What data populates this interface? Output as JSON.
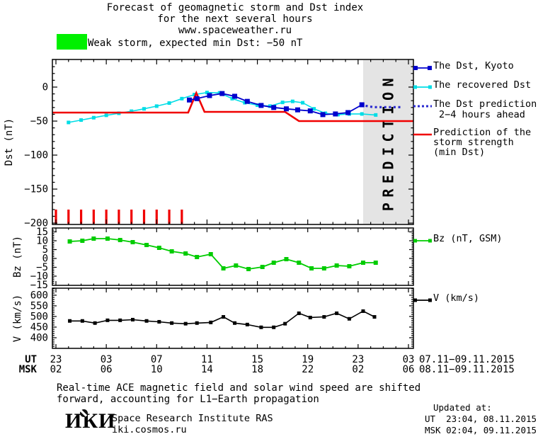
{
  "title": {
    "line1": "Forecast of geomagnetic storm and Dst index",
    "line2": "for the next several hours",
    "line3": "www.spaceweather.ru"
  },
  "banner": {
    "level_color": "#00f000",
    "text": "Weak storm, expected min Dst: −50 nT"
  },
  "legend_dst": [
    {
      "label": "The Dst, Kyoto",
      "color": "#0000cd",
      "style": "line-squares",
      "marker": 6
    },
    {
      "label": "The recovered Dst",
      "color": "#00dde6",
      "style": "line-squares",
      "marker": 5
    },
    {
      "label": "The Dst prediction",
      "label2": "2−4 hours ahead",
      "color": "#2a2ad0",
      "style": "dotted"
    },
    {
      "label": "Prediction of the",
      "label2": "storm strength",
      "label3": "(min Dst)",
      "color": "#f00000",
      "style": "line"
    }
  ],
  "legend_bz": {
    "label": "Bz (nT, GSM)",
    "color": "#00cc00",
    "style": "line-squares",
    "marker": 5
  },
  "legend_v": {
    "label": "V (km/s)",
    "color": "#000000",
    "style": "line-squares",
    "marker": 5
  },
  "xaxis": {
    "major_t": [
      0,
      4,
      8,
      12,
      16,
      20,
      24,
      28
    ],
    "unit_rows": [
      {
        "name": "UT",
        "labels": [
          "23",
          "03",
          "07",
          "11",
          "15",
          "19",
          "23",
          "03"
        ],
        "date_range": "07.11−09.11.2015"
      },
      {
        "name": "MSK",
        "labels": [
          "02",
          "06",
          "10",
          "14",
          "18",
          "22",
          "02",
          "06"
        ],
        "date_range": "08.11−09.11.2015"
      }
    ],
    "x_unit": "hours since 23:00 UT 07.11.2015, major ticks every 4 h, minor every 1 h"
  },
  "chart_data": [
    {
      "type": "line",
      "name": "dst-panel",
      "ylabel": "Dst (nT)",
      "ylim": [
        40.6,
        -202
      ],
      "yticks": [
        {
          "v": 0,
          "label": "0"
        },
        {
          "v": -50,
          "label": "−50"
        },
        {
          "v": -100,
          "label": "−100"
        },
        {
          "v": -150,
          "label": "−150"
        },
        {
          "v": -200,
          "label": "−200"
        }
      ],
      "prediction_band": {
        "t_start": 24.4,
        "t_end": 28.4,
        "label": "PREDICTION",
        "fill": "#e4e4e4",
        "text_color": "#c9c9c9"
      },
      "event_bars": {
        "color": "#f00000",
        "t": [
          0,
          1,
          2,
          3,
          4,
          5,
          6,
          7,
          8,
          9,
          10
        ]
      },
      "series": [
        {
          "name": "recovered-dst",
          "color": "#00dde6",
          "width": 1.6,
          "marker": 5,
          "points": [
            [
              1,
              -52
            ],
            [
              2,
              -48.5
            ],
            [
              3,
              -45
            ],
            [
              4,
              -41.5
            ],
            [
              5,
              -38.5
            ],
            [
              6,
              -35.5
            ],
            [
              7,
              -32
            ],
            [
              8,
              -28
            ],
            [
              9,
              -23.5
            ],
            [
              10,
              -17
            ],
            [
              11,
              -11
            ],
            [
              12,
              -8
            ],
            [
              13,
              -8.5
            ],
            [
              14,
              -17
            ],
            [
              15,
              -23
            ],
            [
              16,
              -26.5
            ],
            [
              17,
              -28
            ],
            [
              18,
              -22.5
            ],
            [
              18.8,
              -21
            ],
            [
              19.6,
              -23
            ],
            [
              20.5,
              -32
            ],
            [
              21.4,
              -38.5
            ],
            [
              22.4,
              -40.5
            ],
            [
              23.3,
              -39.5
            ],
            [
              24.3,
              -39.5
            ],
            [
              25.4,
              -41
            ]
          ]
        },
        {
          "name": "storm-prediction",
          "color": "#f00000",
          "width": 2.6,
          "points": [
            [
              -0.28,
              -37.5
            ],
            [
              10.5,
              -37.5
            ],
            [
              11.15,
              -8.5
            ],
            [
              11.8,
              -36.5
            ],
            [
              18.2,
              -36.5
            ],
            [
              19.3,
              -50
            ],
            [
              28.4,
              -50
            ]
          ]
        },
        {
          "name": "dst-kyoto",
          "color": "#0000cd",
          "width": 1.8,
          "marker": 7,
          "points": [
            [
              10.6,
              -19
            ],
            [
              11.2,
              -17
            ],
            [
              12.2,
              -12.5
            ],
            [
              13.2,
              -9.5
            ],
            [
              14.2,
              -13.5
            ],
            [
              15.2,
              -21
            ],
            [
              16.3,
              -27
            ],
            [
              17.3,
              -30
            ],
            [
              18.3,
              -32
            ],
            [
              19.2,
              -33.5
            ],
            [
              20.2,
              -35
            ],
            [
              21.2,
              -40.5
            ],
            [
              22.2,
              -39.5
            ],
            [
              23.2,
              -37.5
            ],
            [
              24.3,
              -26
            ]
          ]
        },
        {
          "name": "dst-prediction",
          "color": "#2a2ad0",
          "width": 3.2,
          "dotted": true,
          "points": [
            [
              24.6,
              -27.5
            ],
            [
              25.2,
              -29.5
            ],
            [
              27.4,
              -29.5
            ]
          ]
        }
      ]
    },
    {
      "type": "line",
      "name": "bz-panel",
      "ylabel": "Bz (nT)",
      "ylim": [
        17.2,
        -15.2
      ],
      "yticks": [
        {
          "v": 15,
          "label": "15"
        },
        {
          "v": 10,
          "label": "10"
        },
        {
          "v": 5,
          "label": "5"
        },
        {
          "v": 0,
          "label": "0"
        },
        {
          "v": -5,
          "label": "−5"
        },
        {
          "v": -10,
          "label": "−10"
        },
        {
          "v": -15,
          "label": "−15"
        }
      ],
      "series": [
        {
          "name": "bz-gsm",
          "color": "#00cc00",
          "width": 1.8,
          "marker": 6,
          "points": [
            [
              1.1,
              9.6
            ],
            [
              2.1,
              10
            ],
            [
              3,
              11.2
            ],
            [
              4.1,
              11.2
            ],
            [
              5.1,
              10.4
            ],
            [
              6.1,
              9.2
            ],
            [
              7.2,
              7.6
            ],
            [
              8.2,
              6
            ],
            [
              9.2,
              4
            ],
            [
              10.3,
              2.8
            ],
            [
              11.2,
              0.8
            ],
            [
              12.3,
              2.4
            ],
            [
              13.3,
              -5.6
            ],
            [
              14.3,
              -4
            ],
            [
              15.3,
              -6
            ],
            [
              16.4,
              -4.8
            ],
            [
              17.3,
              -2.4
            ],
            [
              18.3,
              -0.4
            ],
            [
              19.3,
              -2.4
            ],
            [
              20.3,
              -5.6
            ],
            [
              21.3,
              -5.6
            ],
            [
              22.3,
              -4
            ],
            [
              23.3,
              -4.4
            ],
            [
              24.4,
              -2.4
            ],
            [
              25.4,
              -2.4
            ]
          ]
        }
      ]
    },
    {
      "type": "line",
      "name": "v-panel",
      "ylabel": "V (km/s)",
      "ylim": [
        633,
        350
      ],
      "yticks": [
        {
          "v": 600,
          "label": "600"
        },
        {
          "v": 550,
          "label": "550"
        },
        {
          "v": 500,
          "label": "500"
        },
        {
          "v": 450,
          "label": "450"
        },
        {
          "v": 400,
          "label": "400"
        }
      ],
      "series": [
        {
          "name": "solar-wind-speed",
          "color": "#000000",
          "width": 1.6,
          "marker": 5,
          "points": [
            [
              1.1,
              479
            ],
            [
              2.1,
              479
            ],
            [
              3.1,
              469
            ],
            [
              4.1,
              482
            ],
            [
              5.1,
              482
            ],
            [
              6.1,
              485
            ],
            [
              7.2,
              479
            ],
            [
              8.2,
              475
            ],
            [
              9.2,
              469
            ],
            [
              10.3,
              466
            ],
            [
              11.2,
              469
            ],
            [
              12.3,
              472
            ],
            [
              13.3,
              498
            ],
            [
              14.2,
              469
            ],
            [
              15.2,
              462
            ],
            [
              16.3,
              449
            ],
            [
              17.3,
              449
            ],
            [
              18.2,
              466
            ],
            [
              19.3,
              515
            ],
            [
              20.2,
              495
            ],
            [
              21.3,
              498
            ],
            [
              22.3,
              515
            ],
            [
              23.3,
              489
            ],
            [
              24.4,
              525
            ],
            [
              25.3,
              498
            ]
          ]
        }
      ]
    }
  ],
  "notes": {
    "line1": "Real-time ACE magnetic field and solar wind speed are shifted",
    "line2": "forward, accounting for L1−Earth propagation"
  },
  "logo": {
    "text": "ИКИ",
    "institute": "Space Research Institute RAS",
    "site": "iki.cosmos.ru"
  },
  "updated": {
    "heading": "Updated at:",
    "line_ut": "UT  23:04, 08.11.2015",
    "line_msk": "MSK 02:04, 09.11.2015"
  }
}
